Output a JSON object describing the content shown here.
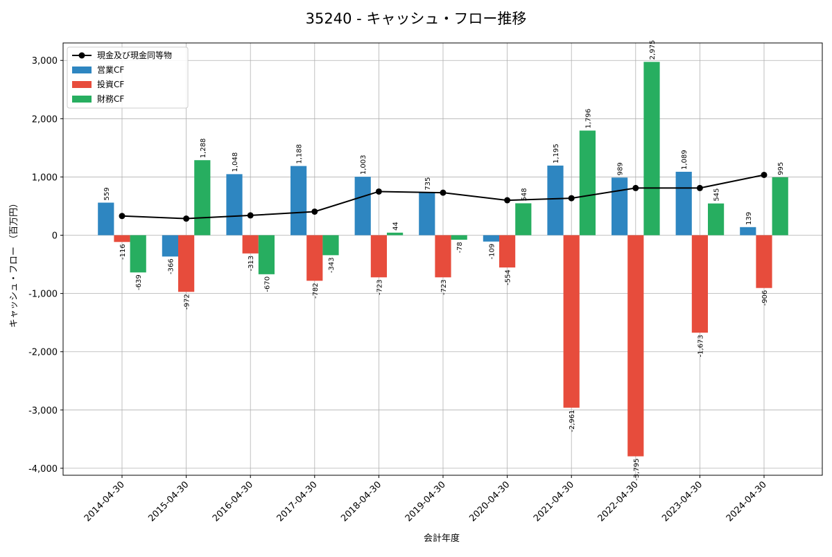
{
  "chart_data": {
    "type": "bar",
    "title": "35240 - キャッシュ・フロー推移",
    "xlabel": "会計年度",
    "ylabel": "キャッシュ・フロー （百万円）",
    "ylim": [
      -4120,
      3300
    ],
    "yticks": [
      -4000,
      -3000,
      -2000,
      -1000,
      0,
      1000,
      2000,
      3000
    ],
    "ytick_labels": [
      "-4,000",
      "-3,000",
      "-2,000",
      "-1,000",
      "0",
      "1,000",
      "2,000",
      "3,000"
    ],
    "grid": true,
    "legend_position": "top-left",
    "categories": [
      "2014-04-30",
      "2015-04-30",
      "2016-04-30",
      "2017-04-30",
      "2018-04-30",
      "2019-04-30",
      "2020-04-30",
      "2021-04-30",
      "2022-04-30",
      "2023-04-30",
      "2024-04-30"
    ],
    "series": [
      {
        "name": "営業CF",
        "kind": "bar",
        "color": "#2e86c1",
        "values": [
          559,
          -366,
          1048,
          1188,
          1003,
          735,
          -109,
          1195,
          989,
          1089,
          139
        ],
        "labels": [
          "559",
          "-366",
          "1,048",
          "1,188",
          "1,003",
          "735",
          "-109",
          "1,195",
          "989",
          "1,089",
          "139"
        ]
      },
      {
        "name": "投資CF",
        "kind": "bar",
        "color": "#e74c3c",
        "values": [
          -116,
          -972,
          -313,
          -782,
          -723,
          -723,
          -554,
          -2961,
          -3795,
          -1673,
          -906
        ],
        "labels": [
          "-116",
          "-972",
          "-313",
          "-782",
          "-723",
          "-723",
          "-554",
          "-2,961",
          "-3,795",
          "-1,673",
          "-906"
        ]
      },
      {
        "name": "財務CF",
        "kind": "bar",
        "color": "#27ae60",
        "values": [
          -639,
          1288,
          -670,
          -343,
          44,
          -78,
          548,
          1796,
          2975,
          545,
          995
        ],
        "labels": [
          "-639",
          "1,288",
          "-670",
          "-343",
          "44",
          "-78",
          "548",
          "1,796",
          "2,975",
          "545",
          "995"
        ]
      },
      {
        "name": "現金及び現金同等物",
        "kind": "line",
        "color": "#000000",
        "values": [
          330,
          285,
          340,
          405,
          750,
          730,
          600,
          635,
          810,
          810,
          1035
        ]
      }
    ]
  }
}
